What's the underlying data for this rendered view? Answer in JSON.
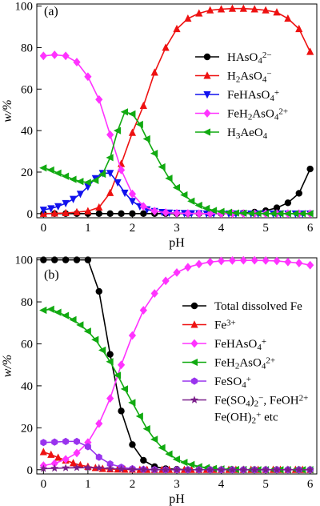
{
  "chart_data": [
    {
      "type": "line",
      "panel_label": "(a)",
      "xlabel": "pH",
      "ylabel": "w/%",
      "xlim": [
        -0.15,
        6.15
      ],
      "ylim": [
        -2,
        101
      ],
      "xticks": [
        0,
        1,
        2,
        3,
        4,
        5,
        6
      ],
      "yticks": [
        0,
        20,
        40,
        60,
        80,
        100
      ],
      "legend_position": "right",
      "series": [
        {
          "name": "HAsO₄²⁻",
          "name_parts": [
            [
              "HAsO",
              "n"
            ],
            [
              "4",
              "sub"
            ],
            [
              "2−",
              "sup"
            ]
          ],
          "color": "#000000",
          "marker": "circle",
          "x": [
            0,
            0.25,
            0.5,
            0.75,
            1,
            1.25,
            1.5,
            1.75,
            2,
            2.25,
            2.5,
            2.75,
            3,
            3.25,
            3.5,
            3.75,
            4,
            4.25,
            4.5,
            4.75,
            5,
            5.25,
            5.5,
            5.75,
            6
          ],
          "y": [
            0,
            0,
            0,
            0,
            0,
            0,
            0,
            0,
            0,
            0,
            0,
            0,
            0,
            0,
            0,
            0,
            0,
            0.1,
            0.3,
            0.7,
            1.4,
            2.8,
            5.2,
            9.8,
            21.5
          ]
        },
        {
          "name": "H₂AsO₄⁻",
          "name_parts": [
            [
              "H",
              "n"
            ],
            [
              "2",
              "sub"
            ],
            [
              "AsO",
              "n"
            ],
            [
              "4",
              "sub"
            ],
            [
              "−",
              "sup"
            ]
          ],
          "color": "#ee1111",
          "marker": "triangle-up",
          "x": [
            0,
            0.25,
            0.5,
            0.75,
            1,
            1.25,
            1.5,
            1.75,
            2,
            2.25,
            2.5,
            2.75,
            3,
            3.25,
            3.5,
            3.75,
            4,
            4.25,
            4.5,
            4.75,
            5,
            5.25,
            5.5,
            5.75,
            6
          ],
          "y": [
            0,
            0.1,
            0.3,
            0.7,
            1.2,
            3,
            10,
            24,
            39,
            52,
            68,
            80,
            89,
            94,
            96.5,
            98,
            98.5,
            98.8,
            98.8,
            98.5,
            98,
            97,
            94,
            89,
            78
          ]
        },
        {
          "name": "FeHAsO₄⁺",
          "name_parts": [
            [
              "FeHAsO",
              "n"
            ],
            [
              "4",
              "sub"
            ],
            [
              "+",
              "sup"
            ]
          ],
          "color": "#1111ee",
          "marker": "triangle-down",
          "x": [
            0,
            0.17,
            0.33,
            0.5,
            0.67,
            0.83,
            1,
            1.17,
            1.33,
            1.5,
            1.67,
            1.83,
            2,
            2.17,
            2.33,
            2.5,
            2.67,
            2.83,
            3,
            3.17,
            3.33,
            3.5,
            3.67,
            3.83,
            4,
            4.17,
            4.33,
            4.5,
            4.67,
            4.83,
            5,
            5.17,
            5.33,
            5.5,
            5.67,
            5.83,
            6
          ],
          "y": [
            1.8,
            2.5,
            3.5,
            5,
            7,
            9.5,
            13,
            17,
            19.5,
            19.5,
            15,
            10,
            6,
            3.5,
            2,
            1.2,
            0.7,
            0.4,
            0.3,
            0.2,
            0.1,
            0.1,
            0,
            0,
            0,
            0,
            0,
            0,
            0,
            0,
            0,
            0,
            0,
            0,
            0,
            0,
            0
          ]
        },
        {
          "name": "FeH₂AsO₄²⁺",
          "name_parts": [
            [
              "FeH",
              "n"
            ],
            [
              "2",
              "sub"
            ],
            [
              "AsO",
              "n"
            ],
            [
              "4",
              "sub"
            ],
            [
              "2+",
              "sup"
            ]
          ],
          "color": "#ff33ff",
          "marker": "diamond",
          "x": [
            0,
            0.25,
            0.5,
            0.75,
            1,
            1.25,
            1.5,
            1.75,
            2,
            2.25,
            2.5,
            2.75,
            3,
            3.25,
            3.5,
            3.75,
            4,
            4.25,
            4.5,
            4.75,
            5,
            5.25,
            5.5,
            5.75,
            6
          ],
          "y": [
            76,
            76.5,
            76,
            73,
            66,
            55,
            38,
            21,
            9.5,
            3.5,
            1.2,
            0.5,
            0.2,
            0.1,
            0,
            0,
            0,
            0,
            0,
            0,
            0,
            0,
            0,
            0,
            0
          ]
        },
        {
          "name": "H₃AeO₄",
          "name_parts": [
            [
              "H",
              "n"
            ],
            [
              "3",
              "sub"
            ],
            [
              "AeO",
              "n"
            ],
            [
              "4",
              "sub"
            ]
          ],
          "color": "#11aa11",
          "marker": "triangle-left",
          "x": [
            0,
            0.17,
            0.33,
            0.5,
            0.67,
            0.83,
            1,
            1.17,
            1.33,
            1.5,
            1.67,
            1.83,
            2,
            2.17,
            2.33,
            2.5,
            2.67,
            2.83,
            3,
            3.17,
            3.33,
            3.5,
            3.67,
            3.83,
            4,
            4.17,
            4.33,
            4.5,
            4.67,
            4.83,
            5,
            5.17,
            5.33,
            5.5,
            5.67,
            5.83,
            6
          ],
          "y": [
            22,
            21,
            19.5,
            18,
            16.5,
            15.5,
            15,
            16,
            19,
            27,
            40,
            49,
            48,
            43,
            36,
            29,
            22.5,
            17,
            12.5,
            9,
            6,
            4,
            2.5,
            1.5,
            1,
            0.6,
            0.3,
            0.2,
            0.1,
            0.1,
            0,
            0,
            0,
            0,
            0,
            0,
            0
          ]
        }
      ]
    },
    {
      "type": "line",
      "panel_label": "(b)",
      "xlabel": "pH",
      "ylabel": "w/%",
      "xlim": [
        -0.15,
        6.15
      ],
      "ylim": [
        -2,
        101
      ],
      "xticks": [
        0,
        1,
        2,
        3,
        4,
        5,
        6
      ],
      "yticks": [
        0,
        20,
        40,
        60,
        80,
        100
      ],
      "legend_position": "right",
      "series": [
        {
          "name": "Total dissolved Fe",
          "name_parts": [
            [
              "Total dissolved Fe",
              "n"
            ]
          ],
          "color": "#000000",
          "marker": "circle",
          "x": [
            0,
            0.25,
            0.5,
            0.75,
            1,
            1.25,
            1.5,
            1.75,
            2,
            2.25,
            2.5,
            2.75,
            3,
            3.25,
            3.5,
            3.75,
            4,
            4.25,
            4.5,
            4.75,
            5,
            5.25,
            5.5,
            5.75,
            6
          ],
          "y": [
            100,
            100,
            100,
            100,
            100,
            85,
            55,
            28,
            12,
            4.5,
            1.5,
            0.5,
            0.2,
            0,
            0,
            0,
            0,
            0,
            0,
            0,
            0,
            0,
            0,
            0,
            0
          ]
        },
        {
          "name": "Fe³⁺",
          "name_parts": [
            [
              "Fe",
              "n"
            ],
            [
              "3+",
              "sup"
            ]
          ],
          "color": "#ee1111",
          "marker": "triangle-up",
          "x": [
            0,
            0.17,
            0.33,
            0.5,
            0.67,
            0.83,
            1,
            1.17,
            1.33,
            1.5,
            1.67,
            1.83,
            2,
            2.17,
            2.33,
            2.5,
            2.67,
            2.83,
            3,
            3.17,
            3.33,
            3.5,
            3.67,
            3.83,
            4,
            4.17,
            4.33,
            4.5,
            4.67,
            4.83,
            5,
            5.17,
            5.33,
            5.5,
            5.67,
            5.83,
            6
          ],
          "y": [
            8.5,
            7.2,
            5.8,
            4.5,
            3.2,
            2.2,
            1.5,
            0.9,
            0.5,
            0.3,
            0.2,
            0.1,
            0.1,
            0,
            0,
            0,
            0,
            0,
            0,
            0,
            0,
            0,
            0,
            0,
            0,
            0,
            0,
            0,
            0,
            0,
            0,
            0,
            0,
            0,
            0,
            0,
            0
          ]
        },
        {
          "name": "FeHAsO₄⁺",
          "name_parts": [
            [
              "FeHAsO",
              "n"
            ],
            [
              "4",
              "sub"
            ],
            [
              "+",
              "sup"
            ]
          ],
          "color": "#ff33ff",
          "marker": "diamond",
          "x": [
            0,
            0.25,
            0.5,
            0.75,
            1,
            1.25,
            1.5,
            1.75,
            2,
            2.25,
            2.5,
            2.75,
            3,
            3.25,
            3.5,
            3.75,
            4,
            4.25,
            4.5,
            4.75,
            5,
            5.25,
            5.5,
            5.75,
            6
          ],
          "y": [
            2,
            3,
            5,
            8,
            13,
            22,
            34,
            50,
            64,
            76,
            84,
            90,
            94,
            96.5,
            98,
            99,
            99.5,
            99.7,
            99.8,
            99.8,
            99.7,
            99.5,
            99,
            98.5,
            97.5
          ]
        },
        {
          "name": "FeH₂AsO₄²⁺",
          "name_parts": [
            [
              "FeH",
              "n"
            ],
            [
              "2",
              "sub"
            ],
            [
              "AsO",
              "n"
            ],
            [
              "4",
              "sub"
            ],
            [
              "2+",
              "sup"
            ]
          ],
          "color": "#11aa11",
          "marker": "triangle-left",
          "x": [
            0,
            0.17,
            0.33,
            0.5,
            0.67,
            0.83,
            1,
            1.17,
            1.33,
            1.5,
            1.67,
            1.83,
            2,
            2.17,
            2.33,
            2.5,
            2.67,
            2.83,
            3,
            3.17,
            3.33,
            3.5,
            3.67,
            3.83,
            4,
            4.17,
            4.33,
            4.5,
            4.67,
            4.83,
            5,
            5.17,
            5.33,
            5.5,
            5.67,
            5.83,
            6
          ],
          "y": [
            76,
            76.5,
            75,
            73.5,
            71.5,
            69,
            66,
            62,
            57,
            51.5,
            45,
            38.5,
            32,
            25.5,
            19.5,
            14.5,
            10.5,
            7.5,
            5,
            3.5,
            2.5,
            1.5,
            1,
            0.6,
            0.4,
            0.2,
            0.1,
            0.1,
            0,
            0,
            0,
            0,
            0,
            0,
            0,
            0,
            0
          ]
        },
        {
          "name": "FeSO₄⁺",
          "name_parts": [
            [
              "FeSO",
              "n"
            ],
            [
              "4",
              "sub"
            ],
            [
              "+",
              "sup"
            ]
          ],
          "color": "#9933ee",
          "marker": "hexagon",
          "x": [
            0,
            0.25,
            0.5,
            0.75,
            1,
            1.25,
            1.5,
            1.75,
            2,
            2.25,
            2.5,
            2.75,
            3,
            3.25,
            3.5,
            3.75,
            4,
            4.25,
            4.5,
            4.75,
            5,
            5.25,
            5.5,
            5.75,
            6
          ],
          "y": [
            13,
            13.2,
            13.5,
            13.5,
            11,
            6,
            2.8,
            1.2,
            0.5,
            0.2,
            0.1,
            0,
            0,
            0,
            0,
            0,
            0,
            0,
            0,
            0,
            0,
            0,
            0,
            0,
            0
          ]
        },
        {
          "name": "Fe(SO₄)₂⁻, FeOH²⁺ Fe(OH)₂⁺ etc",
          "name_parts": [
            [
              "Fe(SO",
              "n"
            ],
            [
              "4",
              "sub"
            ],
            [
              ")",
              "n"
            ],
            [
              "2",
              "sub"
            ],
            [
              "−",
              "sup"
            ],
            [
              ", FeOH",
              "n"
            ],
            [
              "2+",
              "sup"
            ]
          ],
          "name_parts_line2": [
            [
              "Fe(OH)",
              "n"
            ],
            [
              "2",
              "sub"
            ],
            [
              "+",
              "sup"
            ],
            [
              " etc",
              "n"
            ]
          ],
          "color": "#7a1f8a",
          "marker": "star",
          "x": [
            0,
            0.25,
            0.5,
            0.75,
            1,
            1.25,
            1.5,
            1.75,
            2,
            2.25,
            2.5,
            2.75,
            3,
            3.25,
            3.5,
            3.75,
            4,
            4.25,
            4.5,
            4.75,
            5,
            5.25,
            5.5,
            5.75,
            6
          ],
          "y": [
            0.5,
            0.7,
            0.9,
            1,
            1,
            0.9,
            0.6,
            0.3,
            0.2,
            0.1,
            0,
            0,
            0,
            0,
            0,
            0,
            0,
            0,
            0,
            0,
            0,
            0,
            0,
            0,
            0
          ]
        }
      ]
    }
  ]
}
